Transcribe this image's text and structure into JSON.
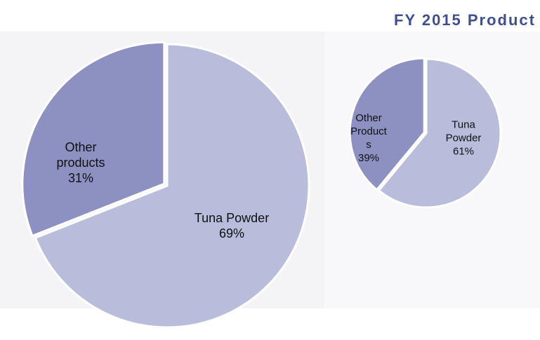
{
  "chart_data": [
    {
      "type": "pie",
      "categories": [
        "Tuna Powder",
        "Other products"
      ],
      "values": [
        69,
        31
      ],
      "value_labels": [
        "69%",
        "31%"
      ],
      "colors": [
        "#b9bcda",
        "#8d91c2"
      ]
    },
    {
      "type": "pie",
      "title": "FY 2015 Product",
      "categories": [
        "Tuna Powder",
        "Other Products"
      ],
      "values": [
        61,
        39
      ],
      "value_labels": [
        "61%",
        "39%"
      ],
      "colors": [
        "#b9bcda",
        "#8d91c2"
      ]
    }
  ]
}
